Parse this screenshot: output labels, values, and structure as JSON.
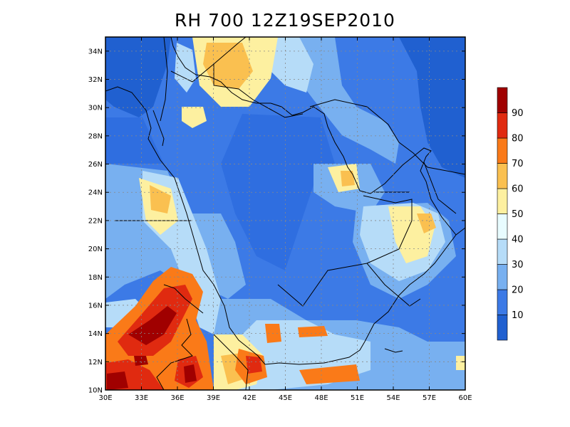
{
  "title": "RH 700 12Z19SEP2010",
  "map": {
    "lon_range": [
      30,
      60
    ],
    "lat_range": [
      10,
      35
    ],
    "lon_ticks": [
      "30E",
      "33E",
      "36E",
      "39E",
      "42E",
      "45E",
      "48E",
      "51E",
      "54E",
      "57E",
      "60E"
    ],
    "lat_ticks": [
      "10N",
      "12N",
      "14N",
      "16N",
      "18N",
      "20N",
      "22N",
      "24N",
      "26N",
      "28N",
      "30N",
      "32N",
      "34N"
    ],
    "grid": true
  },
  "colorbar": {
    "labels": [
      "10",
      "20",
      "30",
      "40",
      "50",
      "60",
      "70",
      "80",
      "90"
    ],
    "colors": [
      "#2060d0",
      "#3c7ae6",
      "#78b0f0",
      "#b6dcf8",
      "#e8fcff",
      "#fdf0a0",
      "#fac050",
      "#fa7a18",
      "#e02a10",
      "#a00000"
    ]
  }
}
